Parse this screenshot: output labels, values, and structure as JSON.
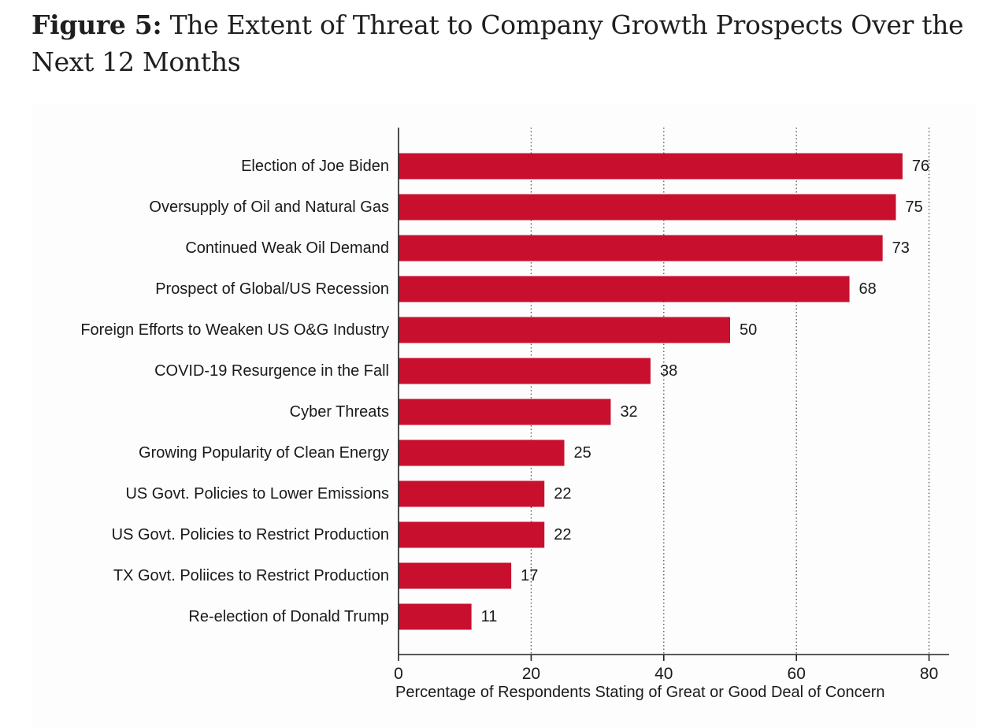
{
  "figure": {
    "label": "Figure 5:",
    "title": "The Extent of Threat to Company Growth Prospects Over the Next 12 Months"
  },
  "chart_data": {
    "type": "bar",
    "orientation": "horizontal",
    "categories": [
      "Election of Joe Biden",
      "Oversupply of Oil and Natural Gas",
      "Continued Weak Oil Demand",
      "Prospect of Global/US Recession",
      "Foreign Efforts to Weaken US O&G Industry",
      "COVID-19 Resurgence in the Fall",
      "Cyber Threats",
      "Growing Popularity of Clean Energy",
      "US Govt. Policies to Lower Emissions",
      "US Govt. Policies to Restrict Production",
      "TX Govt. Poliices to Restrict Production",
      "Re-election of Donald Trump"
    ],
    "values": [
      76,
      75,
      73,
      68,
      50,
      38,
      32,
      25,
      22,
      22,
      17,
      11
    ],
    "xlabel": "Percentage of Respondents Stating of Great or Good Deal of Concern",
    "ylabel": "",
    "xlim": [
      0,
      82
    ],
    "xticks": [
      0,
      20,
      40,
      60,
      80
    ],
    "grid": "vertical dotted",
    "bar_color": "#c8102e",
    "data_labels": true
  }
}
